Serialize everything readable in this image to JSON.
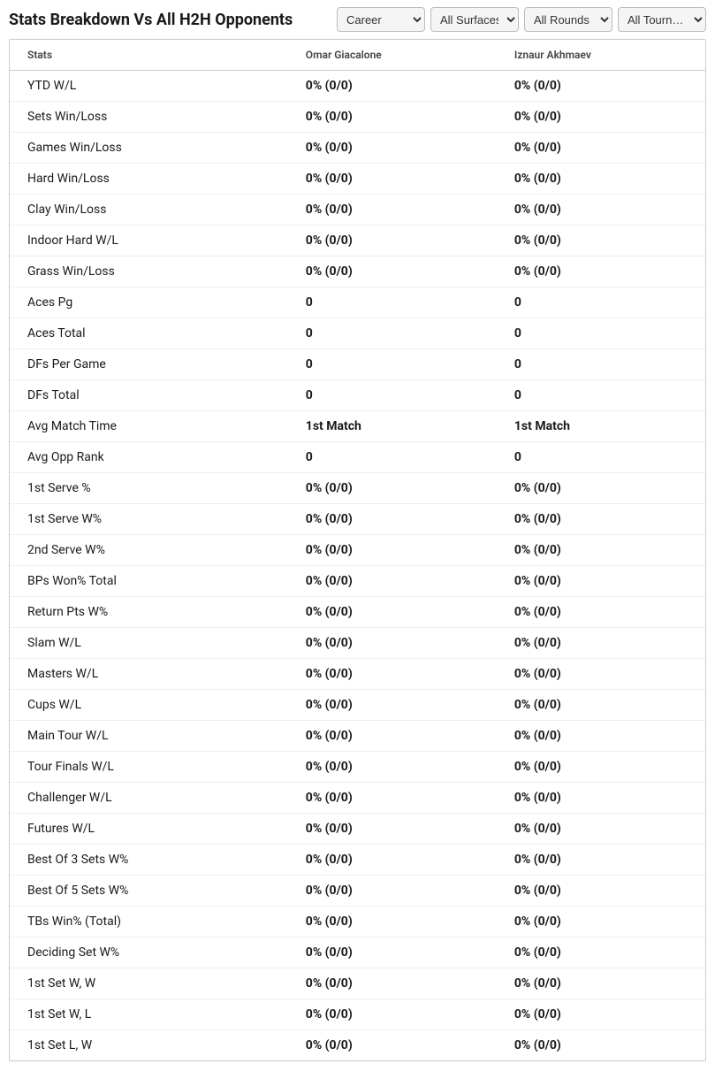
{
  "title": "Stats Breakdown Vs All H2H Opponents",
  "selects": {
    "career": {
      "selected": "Career",
      "options": [
        "Career"
      ]
    },
    "surfaces": {
      "selected": "All Surfaces",
      "options": [
        "All Surfaces"
      ]
    },
    "rounds": {
      "selected": "All Rounds",
      "options": [
        "All Rounds"
      ]
    },
    "tournaments": {
      "selected": "All Tourn…",
      "options": [
        "All Tourn…"
      ]
    }
  },
  "table": {
    "headers": {
      "stats": "Stats",
      "player1": "Omar Giacalone",
      "player2": "Iznaur Akhmaev"
    },
    "rows": [
      {
        "label": "YTD W/L",
        "p1": "0% (0/0)",
        "p2": "0% (0/0)"
      },
      {
        "label": "Sets Win/Loss",
        "p1": "0% (0/0)",
        "p2": "0% (0/0)"
      },
      {
        "label": "Games Win/Loss",
        "p1": "0% (0/0)",
        "p2": "0% (0/0)"
      },
      {
        "label": "Hard Win/Loss",
        "p1": "0% (0/0)",
        "p2": "0% (0/0)"
      },
      {
        "label": "Clay Win/Loss",
        "p1": "0% (0/0)",
        "p2": "0% (0/0)"
      },
      {
        "label": "Indoor Hard W/L",
        "p1": "0% (0/0)",
        "p2": "0% (0/0)"
      },
      {
        "label": "Grass Win/Loss",
        "p1": "0% (0/0)",
        "p2": "0% (0/0)"
      },
      {
        "label": "Aces Pg",
        "p1": "0",
        "p2": "0"
      },
      {
        "label": "Aces Total",
        "p1": "0",
        "p2": "0"
      },
      {
        "label": "DFs Per Game",
        "p1": "0",
        "p2": "0"
      },
      {
        "label": "DFs Total",
        "p1": "0",
        "p2": "0"
      },
      {
        "label": "Avg Match Time",
        "p1": "1st Match",
        "p2": "1st Match"
      },
      {
        "label": "Avg Opp Rank",
        "p1": "0",
        "p2": "0"
      },
      {
        "label": "1st Serve %",
        "p1": "0% (0/0)",
        "p2": "0% (0/0)"
      },
      {
        "label": "1st Serve W%",
        "p1": "0% (0/0)",
        "p2": "0% (0/0)"
      },
      {
        "label": "2nd Serve W%",
        "p1": "0% (0/0)",
        "p2": "0% (0/0)"
      },
      {
        "label": "BPs Won% Total",
        "p1": "0% (0/0)",
        "p2": "0% (0/0)"
      },
      {
        "label": "Return Pts W%",
        "p1": "0% (0/0)",
        "p2": "0% (0/0)"
      },
      {
        "label": "Slam W/L",
        "p1": "0% (0/0)",
        "p2": "0% (0/0)"
      },
      {
        "label": "Masters W/L",
        "p1": "0% (0/0)",
        "p2": "0% (0/0)"
      },
      {
        "label": "Cups W/L",
        "p1": "0% (0/0)",
        "p2": "0% (0/0)"
      },
      {
        "label": "Main Tour W/L",
        "p1": "0% (0/0)",
        "p2": "0% (0/0)"
      },
      {
        "label": "Tour Finals W/L",
        "p1": "0% (0/0)",
        "p2": "0% (0/0)"
      },
      {
        "label": "Challenger W/L",
        "p1": "0% (0/0)",
        "p2": "0% (0/0)"
      },
      {
        "label": "Futures W/L",
        "p1": "0% (0/0)",
        "p2": "0% (0/0)"
      },
      {
        "label": "Best Of 3 Sets W%",
        "p1": "0% (0/0)",
        "p2": "0% (0/0)"
      },
      {
        "label": "Best Of 5 Sets W%",
        "p1": "0% (0/0)",
        "p2": "0% (0/0)"
      },
      {
        "label": "TBs Win% (Total)",
        "p1": "0% (0/0)",
        "p2": "0% (0/0)"
      },
      {
        "label": "Deciding Set W%",
        "p1": "0% (0/0)",
        "p2": "0% (0/0)"
      },
      {
        "label": "1st Set W, W",
        "p1": "0% (0/0)",
        "p2": "0% (0/0)"
      },
      {
        "label": "1st Set W, L",
        "p1": "0% (0/0)",
        "p2": "0% (0/0)"
      },
      {
        "label": "1st Set L, W",
        "p1": "0% (0/0)",
        "p2": "0% (0/0)"
      }
    ]
  },
  "style": {
    "title_fontsize": 18,
    "header_fontsize": 12,
    "cell_fontsize": 14,
    "title_color": "#1a1a1a",
    "header_color": "#444444",
    "cell_color": "#1a1a1a",
    "border_color": "#cccccc",
    "row_border_color": "#eeeeee",
    "background_color": "#ffffff",
    "select_bg": "#f5f5f5"
  }
}
